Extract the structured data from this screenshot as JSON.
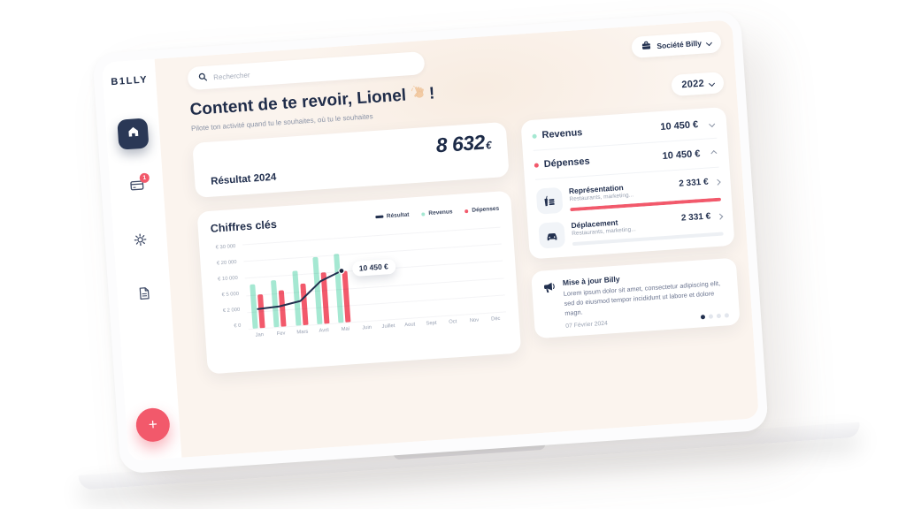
{
  "brand": {
    "logo_text": "B1LLY"
  },
  "topbar": {
    "search_placeholder": "Rechercher",
    "company_selector": {
      "label": "Société Billy"
    },
    "year_selector": {
      "label": "2022"
    }
  },
  "header": {
    "greeting_prefix": "Content de te revoir, Lionel",
    "greeting_emoji": "👋🏻",
    "greeting_suffix": "!",
    "subtitle": "Pilote ton activité quand tu le souhaites, où tu le souhaites"
  },
  "sidebar": {
    "notification_badge": "1",
    "fab_label": "+"
  },
  "result_card": {
    "label": "Résultat 2024",
    "amount": "8 632",
    "currency": "€"
  },
  "chart_card": {
    "title": "Chiffres clés"
  },
  "chart_data": {
    "type": "bar",
    "title": "Chiffres clés",
    "categories": [
      "Jan",
      "Fev",
      "Mars",
      "Avril",
      "Mai",
      "Juin",
      "Juillet",
      "Aout",
      "Sept",
      "Oct",
      "Nov",
      "Déc"
    ],
    "series": [
      {
        "name": "Résultat",
        "type": "line",
        "color": "#22304f",
        "values": [
          2400,
          2600,
          3300,
          7600,
          10450,
          null,
          null,
          null,
          null,
          null,
          null,
          null
        ]
      },
      {
        "name": "Revenus",
        "type": "bar",
        "color": "#a5e8d2",
        "values": [
          8000,
          8700,
          12500,
          19800,
          20500,
          null,
          null,
          null,
          null,
          null,
          null,
          null
        ]
      },
      {
        "name": "Dépenses",
        "type": "bar",
        "color": "#f2596b",
        "values": [
          5000,
          5600,
          7300,
          10000,
          10450,
          null,
          null,
          null,
          null,
          null,
          null,
          null
        ]
      }
    ],
    "y_tick_values": [
      30000,
      20000,
      10000,
      5000,
      2000,
      0
    ],
    "y_tick_labels": [
      "€ 30 000",
      "€ 20 000",
      "€ 10 000",
      "€ 5 000",
      "€ 2 000",
      "€ 0"
    ],
    "scale_note": "ticks equally spaced (non-linear scale)",
    "grid": true,
    "legend_position": "top-right",
    "tooltip": {
      "category": "Mai",
      "series": "Résultat",
      "text": "10 450 €"
    }
  },
  "summary_card": {
    "rows": [
      {
        "label": "Revenus",
        "value": "10 450 €",
        "dot_color": "#a5e8d2",
        "chevron": "down"
      },
      {
        "label": "Dépenses",
        "value": "10 450 €",
        "dot_color": "#f2596b",
        "chevron": "up"
      }
    ],
    "items": [
      {
        "icon": "meal-icon",
        "name": "Représentation",
        "subtitle": "Restaurants, marketing...",
        "value": "2 331 €",
        "progress": 100
      },
      {
        "icon": "car-icon",
        "name": "Déplacement",
        "subtitle": "Restaurants, marketing...",
        "value": "2 331 €",
        "progress": 0
      }
    ]
  },
  "update_card": {
    "title": "Mise à jour Billy",
    "body": "Lorem ipsum dolor sit amet, consectetur adipiscing elit, sed do eiusmod tempor incididunt ut labore et dolore magn.",
    "date": "07 Février 2024",
    "carousel": {
      "dots": 4,
      "active": 0
    }
  },
  "colors": {
    "navy": "#22304f",
    "teal": "#a5e8d2",
    "red": "#f2596b",
    "cream_bg": "#fbf4ee"
  }
}
